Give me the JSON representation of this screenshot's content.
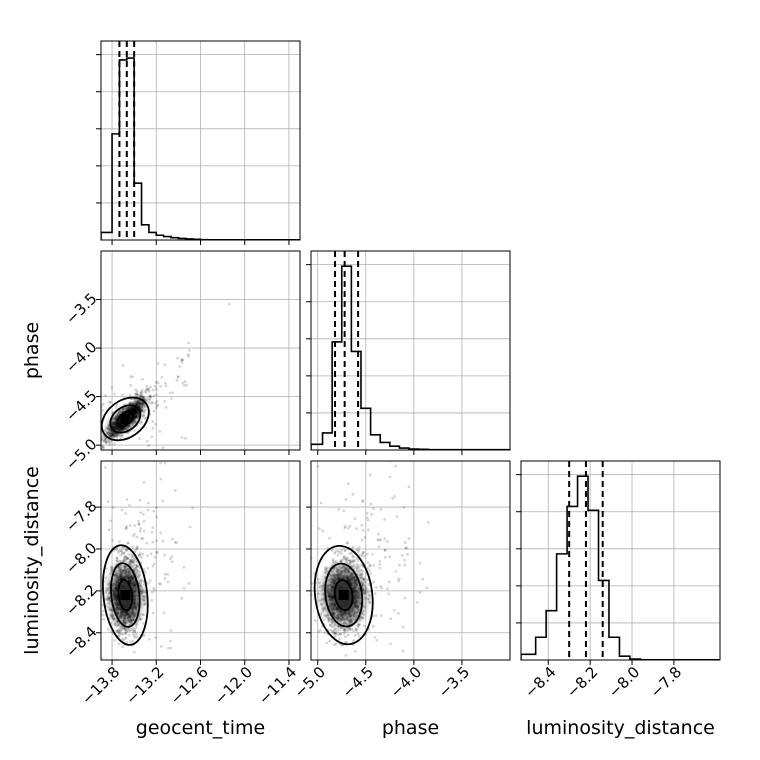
{
  "chart_data": {
    "type": "corner",
    "parameters": [
      "geocent_time",
      "phase",
      "luminosity_distance"
    ],
    "panels": [
      {
        "id": "hist-geocent_time",
        "type": "histogram",
        "x_param": "geocent_time",
        "xlim": [
          -13.95,
          -11.25
        ],
        "ylim": [
          0,
          1.05
        ],
        "x_ticks": [
          -13.8,
          -13.2,
          -12.6,
          -12.0,
          -11.4
        ],
        "x_tick_labels": [],
        "bin_edges": [
          -13.95,
          -13.8,
          -13.7,
          -13.6,
          -13.5,
          -13.4,
          -13.3,
          -13.2,
          -13.1,
          -13.0,
          -12.9,
          -12.8,
          -12.7,
          -12.6,
          -12.5,
          -11.25
        ],
        "counts": [
          0.04,
          0.56,
          0.95,
          0.96,
          0.3,
          0.08,
          0.04,
          0.025,
          0.018,
          0.012,
          0.008,
          0.006,
          0.004,
          0.002,
          0.001
        ],
        "quantiles": [
          -13.7,
          -13.6,
          -13.5
        ]
      },
      {
        "id": "scatter-geocent_time-phase",
        "type": "scatter2d",
        "x_param": "geocent_time",
        "y_param": "phase",
        "xlim": [
          -13.95,
          -11.25
        ],
        "ylim": [
          -5.05,
          -3.0
        ],
        "x_ticks": [
          -13.8,
          -13.2,
          -12.6,
          -12.0,
          -11.4
        ],
        "x_tick_labels": [],
        "y_ticks": [
          -5.0,
          -4.5,
          -4.0,
          -3.5
        ],
        "y_tick_labels": [
          "−5.0",
          "−4.5",
          "−4.0",
          "−3.5"
        ],
        "y_label": "phase",
        "centroid": [
          -13.62,
          -4.73
        ],
        "spread": [
          0.13,
          0.1
        ],
        "correlation": 0.85
      },
      {
        "id": "hist-phase",
        "type": "histogram",
        "x_param": "phase",
        "xlim": [
          -5.07,
          -3.0
        ],
        "ylim": [
          0,
          1.05
        ],
        "x_ticks": [
          -5.0,
          -4.5,
          -4.0,
          -3.5
        ],
        "x_tick_labels": [],
        "bin_edges": [
          -5.07,
          -4.95,
          -4.85,
          -4.75,
          -4.65,
          -4.55,
          -4.45,
          -4.35,
          -4.25,
          -4.15,
          -4.05,
          -3.95,
          -3.85,
          -3.0
        ],
        "counts": [
          0.03,
          0.09,
          0.57,
          0.97,
          0.52,
          0.22,
          0.08,
          0.04,
          0.02,
          0.01,
          0.005,
          0.004,
          0.002
        ],
        "quantiles": [
          -4.82,
          -4.72,
          -4.58
        ]
      },
      {
        "id": "scatter-geocent_time-luminosity_distance",
        "type": "scatter2d",
        "x_param": "geocent_time",
        "y_param": "luminosity_distance",
        "xlim": [
          -13.95,
          -11.25
        ],
        "ylim": [
          -8.53,
          -7.58
        ],
        "x_ticks": [
          -13.8,
          -13.2,
          -12.6,
          -12.0,
          -11.4
        ],
        "x_tick_labels": [
          "−13.8",
          "−13.2",
          "−12.6",
          "−12.0",
          "−11.4"
        ],
        "x_label": "geocent_time",
        "y_ticks": [
          -8.4,
          -8.2,
          -8.0,
          -7.8
        ],
        "y_tick_labels": [
          "−8.4",
          "−8.2",
          "−8.0",
          "−7.8"
        ],
        "y_label": "luminosity_distance",
        "centroid": [
          -13.62,
          -8.22
        ],
        "spread": [
          0.11,
          0.09
        ],
        "correlation": 0.05
      },
      {
        "id": "scatter-phase-luminosity_distance",
        "type": "scatter2d",
        "x_param": "phase",
        "y_param": "luminosity_distance",
        "xlim": [
          -5.07,
          -3.0
        ],
        "ylim": [
          -8.53,
          -7.58
        ],
        "x_ticks": [
          -5.0,
          -4.5,
          -4.0,
          -3.5
        ],
        "x_tick_labels": [
          "−5.0",
          "−4.5",
          "−4.0",
          "−3.5"
        ],
        "x_label": "phase",
        "y_ticks": [
          -8.4,
          -8.2,
          -8.0,
          -7.8
        ],
        "y_tick_labels": [],
        "centroid": [
          -4.73,
          -8.22
        ],
        "spread": [
          0.11,
          0.09
        ],
        "correlation": 0.08
      },
      {
        "id": "hist-luminosity_distance",
        "type": "histogram",
        "x_param": "luminosity_distance",
        "xlim": [
          -8.53,
          -7.58
        ],
        "ylim": [
          0,
          1.05
        ],
        "x_ticks": [
          -8.4,
          -8.2,
          -8.0,
          -7.8
        ],
        "x_tick_labels": [
          "−8.4",
          "−8.2",
          "−8.0",
          "−7.8"
        ],
        "x_label": "luminosity_distance",
        "bin_edges": [
          -8.53,
          -8.46,
          -8.41,
          -8.36,
          -8.31,
          -8.26,
          -8.21,
          -8.16,
          -8.11,
          -8.06,
          -8.01,
          -7.96,
          -7.58
        ],
        "counts": [
          0.03,
          0.12,
          0.26,
          0.56,
          0.81,
          0.97,
          0.79,
          0.42,
          0.12,
          0.02,
          0.005,
          0.001
        ],
        "quantiles": [
          -8.3,
          -8.22,
          -8.14
        ]
      }
    ],
    "grid": true,
    "hist_y_tick_count": 5
  }
}
